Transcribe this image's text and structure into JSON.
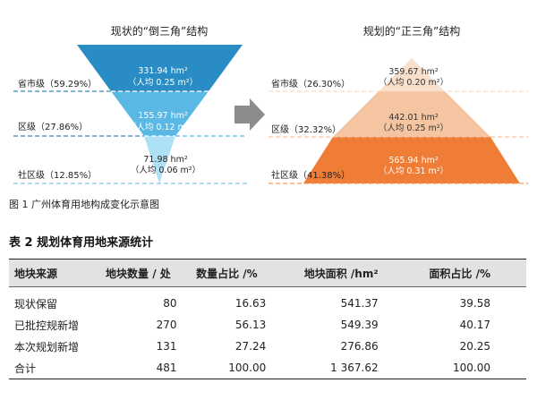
{
  "figure": {
    "left_title": "现状的“倒三角”结构",
    "right_title": "规划的“正三角”结构",
    "left_tiers": [
      {
        "level": "省市级（59.29%）",
        "area": "331.94 hm²",
        "per_capita": "（人均 0.25 m²）"
      },
      {
        "level": "区级（27.86%）",
        "area": "155.97 hm²",
        "per_capita": "（人均 0.12 m²）"
      },
      {
        "level": "社区级（12.85%）",
        "area": "71.98 hm²",
        "per_capita": "（人均 0.06 m²）"
      }
    ],
    "right_tiers": [
      {
        "level": "省市级（26.30%）",
        "area": "359.67 hm²",
        "per_capita": "（人均 0.20 m²）"
      },
      {
        "level": "区级（32.32%）",
        "area": "442.01 hm²",
        "per_capita": "（人均 0.25 m²）"
      },
      {
        "level": "社区级（41.38%）",
        "area": "565.94 hm²",
        "per_capita": "（人均 0.31 m²）"
      }
    ],
    "caption": "图 1  广州体育用地构成变化示意图",
    "colors": {
      "inv_top": "#2a8cc4",
      "inv_mid": "#5ab8e4",
      "inv_bot": "#aee0f6",
      "pyr_top": "#f8e0cd",
      "pyr_mid": "#f5c4a0",
      "pyr_bot": "#ef7d35",
      "arrow": "#8c8c8c"
    }
  },
  "table": {
    "title": "表 2 规划体育用地来源统计",
    "headers": [
      "地块来源",
      "地块数量 / 处",
      "数量占比 /%",
      "地块面积 /hm²",
      "面积占比 /%"
    ],
    "rows": [
      [
        "现状保留",
        "80",
        "16.63",
        "541.37",
        "39.58"
      ],
      [
        "已批控规新增",
        "270",
        "56.13",
        "549.39",
        "40.17"
      ],
      [
        "本次规划新增",
        "131",
        "27.24",
        "276.86",
        "20.25"
      ],
      [
        "合计",
        "481",
        "100.00",
        "1 367.62",
        "100.00"
      ]
    ]
  }
}
